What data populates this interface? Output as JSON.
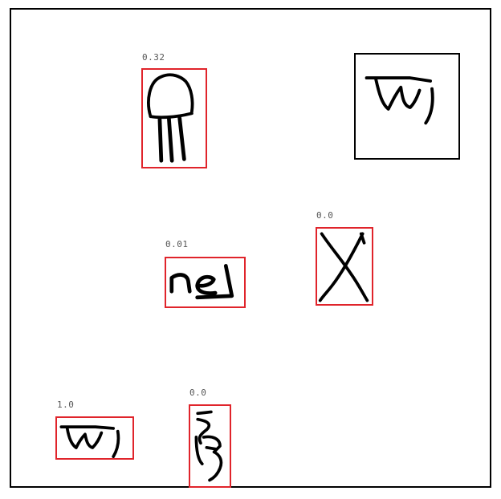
{
  "reference": {
    "glyph": "reference-glyph"
  },
  "detections": [
    {
      "score": "0.32",
      "glyph": "arch-glyph"
    },
    {
      "score": "0.01",
      "glyph": "box-glyph"
    },
    {
      "score": "0.0",
      "glyph": "cross-glyph"
    },
    {
      "score": "1.0",
      "glyph": "match-glyph"
    },
    {
      "score": "0.0",
      "glyph": "hook-glyph"
    }
  ],
  "colors": {
    "detection_box": "#e0242b",
    "frame": "#000000",
    "stroke": "#000000"
  }
}
